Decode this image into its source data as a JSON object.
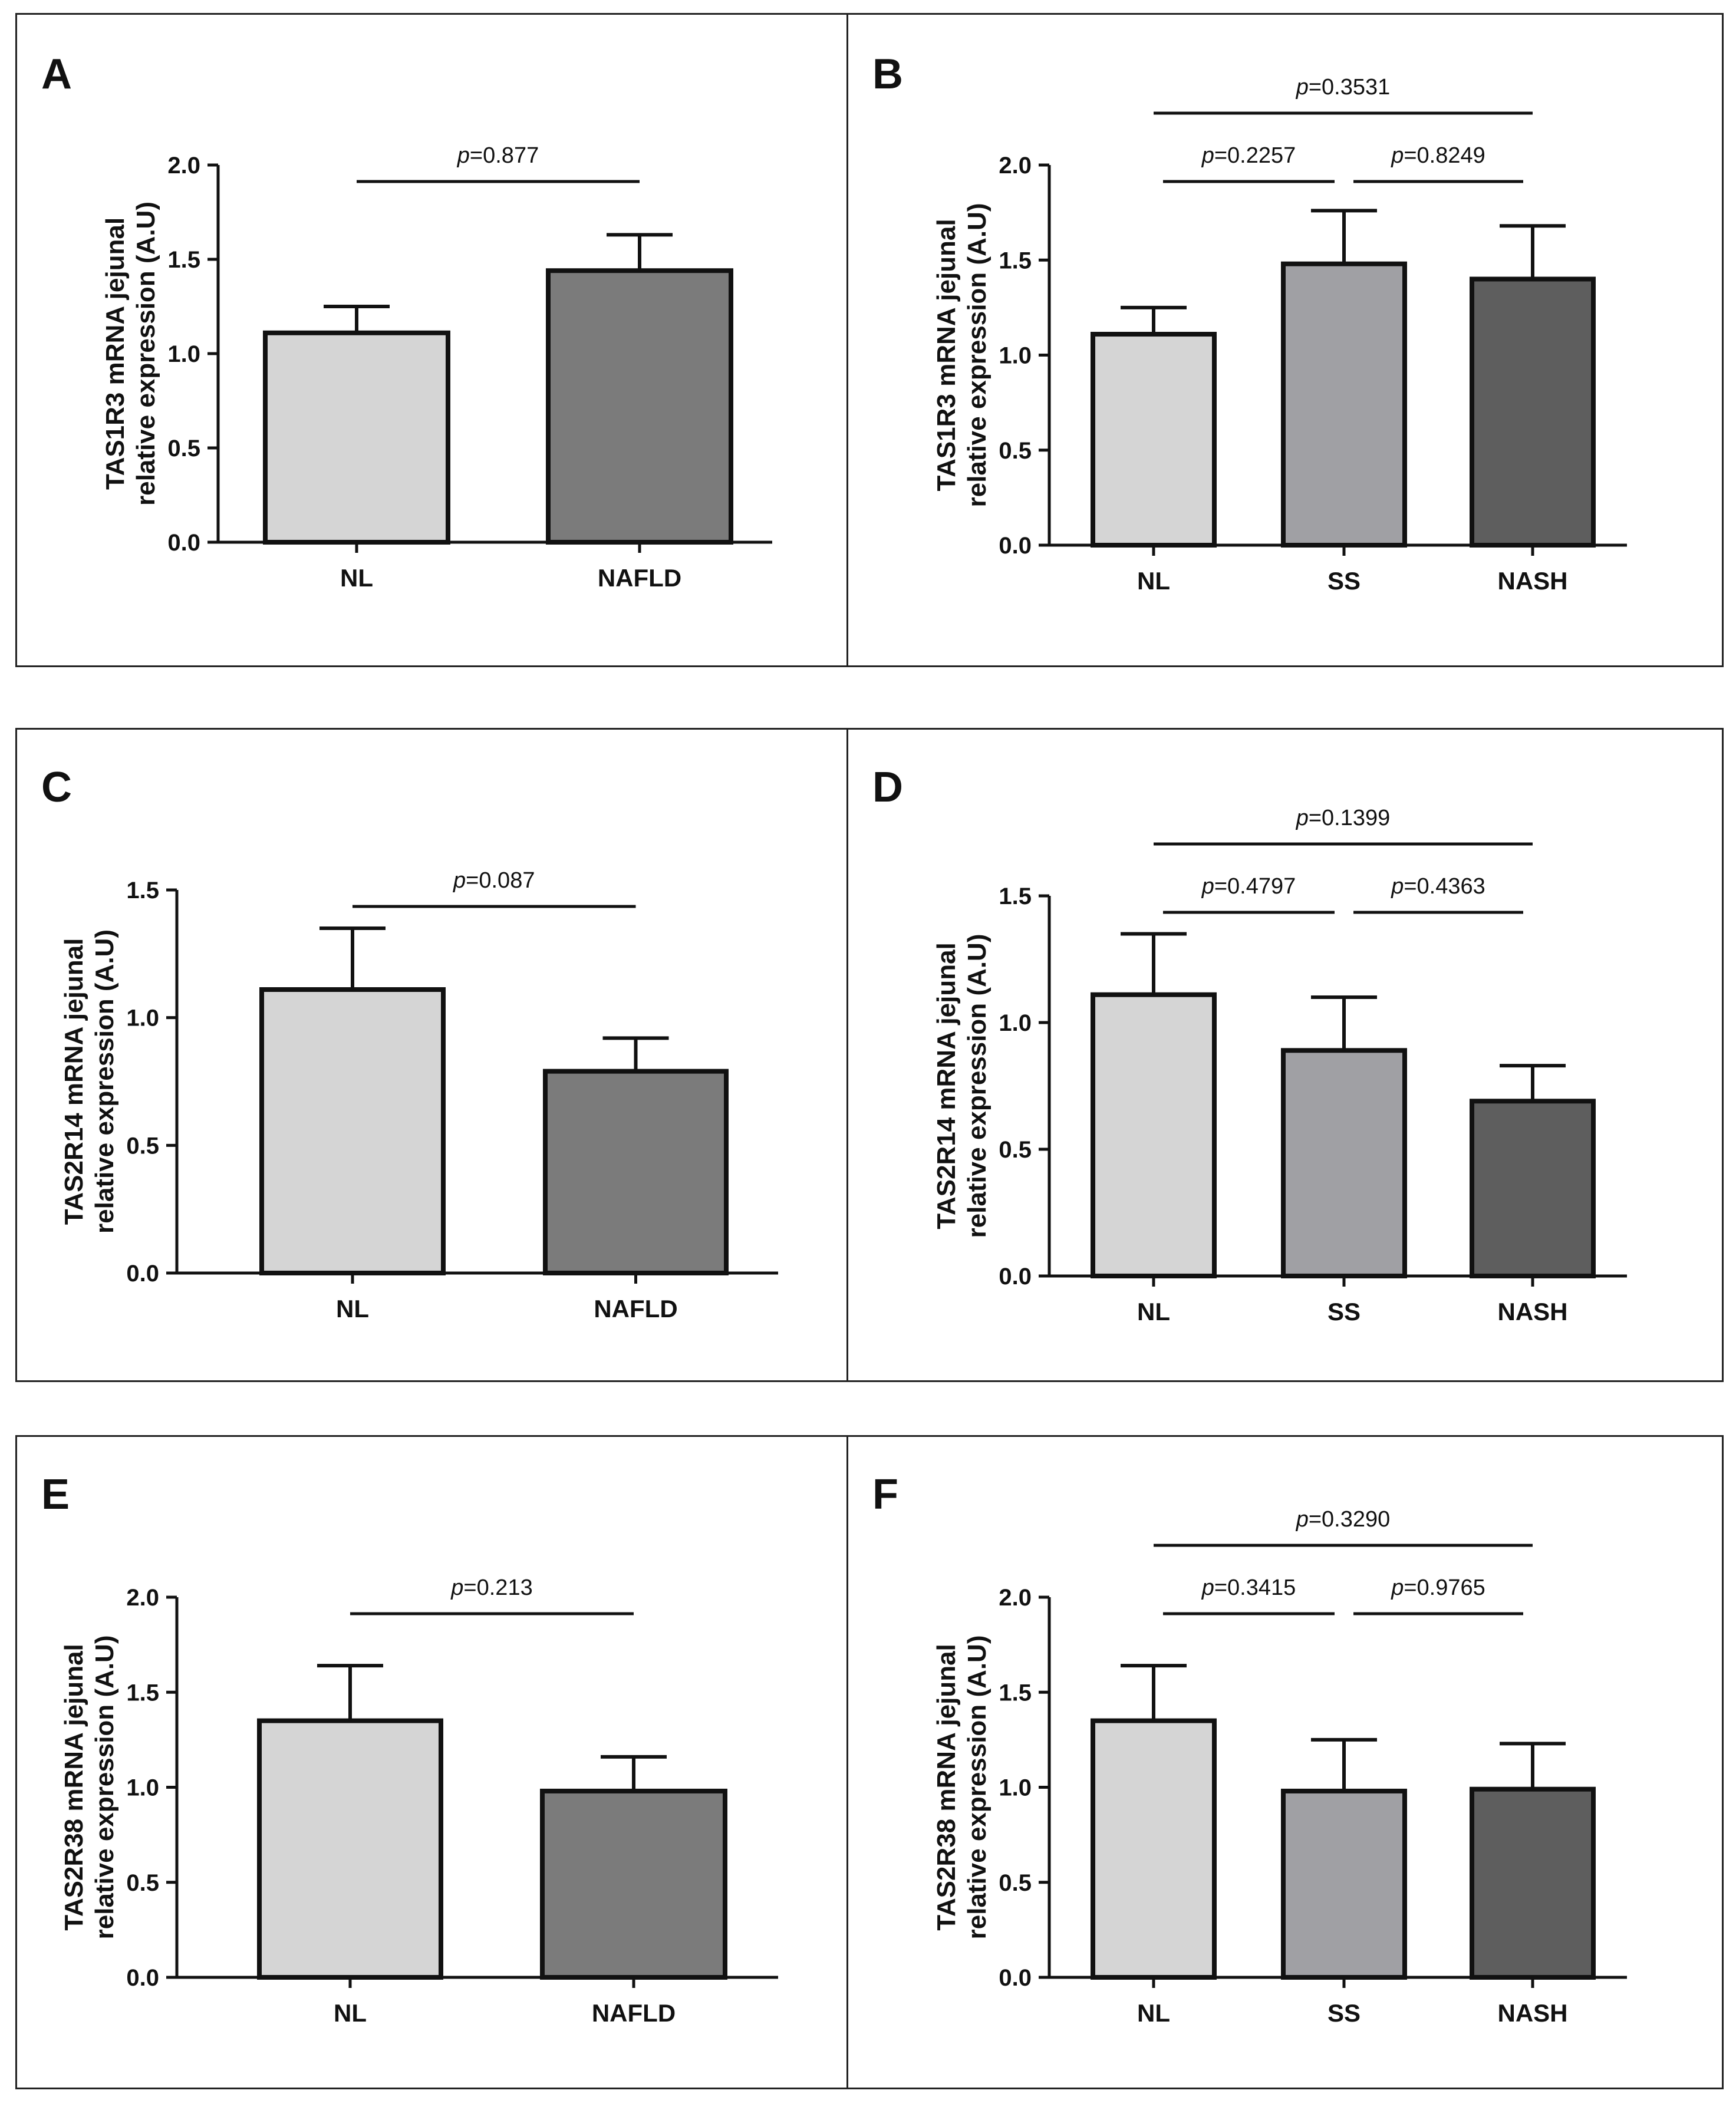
{
  "figure": {
    "panels_layout": "3 rows x 2 columns"
  },
  "chart_data": [
    {
      "panel": "A",
      "type": "bar",
      "ylabel_line1": "TAS1R3 mRNA jejunal",
      "ylabel_line2": "relative expression (A.U)",
      "ylim": [
        0,
        2.0
      ],
      "yticks": [
        "0.0",
        "0.5",
        "1.0",
        "1.5",
        "2.0"
      ],
      "categories": [
        "NL",
        "NAFLD"
      ],
      "values": [
        1.11,
        1.44
      ],
      "errors": [
        0.14,
        0.19
      ],
      "colors": [
        "#d5d5d5",
        "#7b7b7b"
      ],
      "comparisons": [
        {
          "from": 0,
          "to": 1,
          "p_label": "p",
          "p_value": "=0.877",
          "level": 1
        }
      ]
    },
    {
      "panel": "B",
      "type": "bar",
      "ylabel_line1": "TAS1R3 mRNA jejunal",
      "ylabel_line2": "relative expression (A.U)",
      "ylim": [
        0,
        2.0
      ],
      "yticks": [
        "0.0",
        "0.5",
        "1.0",
        "1.5",
        "2.0"
      ],
      "categories": [
        "NL",
        "SS",
        "NASH"
      ],
      "values": [
        1.11,
        1.48,
        1.4
      ],
      "errors": [
        0.14,
        0.28,
        0.28
      ],
      "colors": [
        "#d5d5d5",
        "#a0a0a4",
        "#5e5e5e"
      ],
      "comparisons": [
        {
          "from": 0,
          "to": 1,
          "p_label": "p",
          "p_value": "=0.2257",
          "level": 1
        },
        {
          "from": 1,
          "to": 2,
          "p_label": "p",
          "p_value": "=0.8249",
          "level": 1
        },
        {
          "from": 0,
          "to": 2,
          "p_label": "p",
          "p_value": "=0.3531",
          "level": 2
        }
      ]
    },
    {
      "panel": "C",
      "type": "bar",
      "ylabel_line1": "TAS2R14 mRNA jejunal",
      "ylabel_line2": "relative expression (A.U)",
      "ylim": [
        0,
        1.5
      ],
      "yticks": [
        "0.0",
        "0.5",
        "1.0",
        "1.5"
      ],
      "categories": [
        "NL",
        "NAFLD"
      ],
      "values": [
        1.11,
        0.79
      ],
      "errors": [
        0.24,
        0.13
      ],
      "colors": [
        "#d5d5d5",
        "#7b7b7b"
      ],
      "comparisons": [
        {
          "from": 0,
          "to": 1,
          "p_label": "p",
          "p_value": "=0.087",
          "level": 1
        }
      ]
    },
    {
      "panel": "D",
      "type": "bar",
      "ylabel_line1": "TAS2R14 mRNA jejunal",
      "ylabel_line2": "relative expression (A.U)",
      "ylim": [
        0,
        1.5
      ],
      "yticks": [
        "0.0",
        "0.5",
        "1.0",
        "1.5"
      ],
      "categories": [
        "NL",
        "SS",
        "NASH"
      ],
      "values": [
        1.11,
        0.89,
        0.69
      ],
      "errors": [
        0.24,
        0.21,
        0.14
      ],
      "colors": [
        "#d5d5d5",
        "#a0a0a4",
        "#5e5e5e"
      ],
      "comparisons": [
        {
          "from": 0,
          "to": 1,
          "p_label": "p",
          "p_value": "=0.4797",
          "level": 1
        },
        {
          "from": 1,
          "to": 2,
          "p_label": "p",
          "p_value": "=0.4363",
          "level": 1
        },
        {
          "from": 0,
          "to": 2,
          "p_label": "p",
          "p_value": "=0.1399",
          "level": 2
        }
      ]
    },
    {
      "panel": "E",
      "type": "bar",
      "ylabel_line1": "TAS2R38 mRNA jejunal",
      "ylabel_line2": "relative expression (A.U)",
      "ylim": [
        0,
        2.0
      ],
      "yticks": [
        "0.0",
        "0.5",
        "1.0",
        "1.5",
        "2.0"
      ],
      "categories": [
        "NL",
        "NAFLD"
      ],
      "values": [
        1.35,
        0.98
      ],
      "errors": [
        0.29,
        0.18
      ],
      "colors": [
        "#d5d5d5",
        "#7b7b7b"
      ],
      "comparisons": [
        {
          "from": 0,
          "to": 1,
          "p_label": "p",
          "p_value": "=0.213",
          "level": 1
        }
      ]
    },
    {
      "panel": "F",
      "type": "bar",
      "ylabel_line1": "TAS2R38 mRNA jejunal",
      "ylabel_line2": "relative expression (A.U)",
      "ylim": [
        0,
        2.0
      ],
      "yticks": [
        "0.0",
        "0.5",
        "1.0",
        "1.5",
        "2.0"
      ],
      "categories": [
        "NL",
        "SS",
        "NASH"
      ],
      "values": [
        1.35,
        0.98,
        0.99
      ],
      "errors": [
        0.29,
        0.27,
        0.24
      ],
      "colors": [
        "#d5d5d5",
        "#a0a0a4",
        "#5e5e5e"
      ],
      "comparisons": [
        {
          "from": 0,
          "to": 1,
          "p_label": "p",
          "p_value": "=0.3415",
          "level": 1
        },
        {
          "from": 1,
          "to": 2,
          "p_label": "p",
          "p_value": "=0.9765",
          "level": 1
        },
        {
          "from": 0,
          "to": 2,
          "p_label": "p",
          "p_value": "=0.3290",
          "level": 2
        }
      ]
    }
  ]
}
